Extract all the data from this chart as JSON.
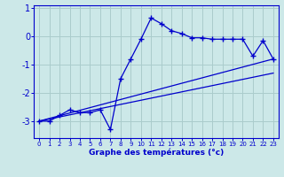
{
  "xlabel": "Graphe des températures (°c)",
  "bg_color": "#cce8e8",
  "grid_color": "#aacccc",
  "line_color": "#0000cc",
  "hours": [
    0,
    1,
    2,
    3,
    4,
    5,
    6,
    7,
    8,
    9,
    10,
    11,
    12,
    13,
    14,
    15,
    16,
    17,
    18,
    19,
    20,
    21,
    22,
    23
  ],
  "temps": [
    -3.0,
    -3.0,
    -2.8,
    -2.6,
    -2.7,
    -2.7,
    -2.6,
    -3.3,
    -1.5,
    -0.8,
    -0.1,
    0.65,
    0.45,
    0.2,
    0.1,
    -0.05,
    -0.05,
    -0.1,
    -0.1,
    -0.1,
    -0.1,
    -0.7,
    -0.15,
    -0.8
  ],
  "trend1": [
    -3.0,
    -0.8
  ],
  "trend1_x": [
    0,
    23
  ],
  "trend2_x": [
    0,
    23
  ],
  "trend2": [
    -3.0,
    -1.3
  ],
  "ylim": [
    -3.6,
    1.1
  ],
  "xlim": [
    -0.5,
    23.5
  ],
  "yticks": [
    1,
    0,
    -1,
    -2,
    -3
  ],
  "xticks": [
    0,
    1,
    2,
    3,
    4,
    5,
    6,
    7,
    8,
    9,
    10,
    11,
    12,
    13,
    14,
    15,
    16,
    17,
    18,
    19,
    20,
    21,
    22,
    23
  ]
}
